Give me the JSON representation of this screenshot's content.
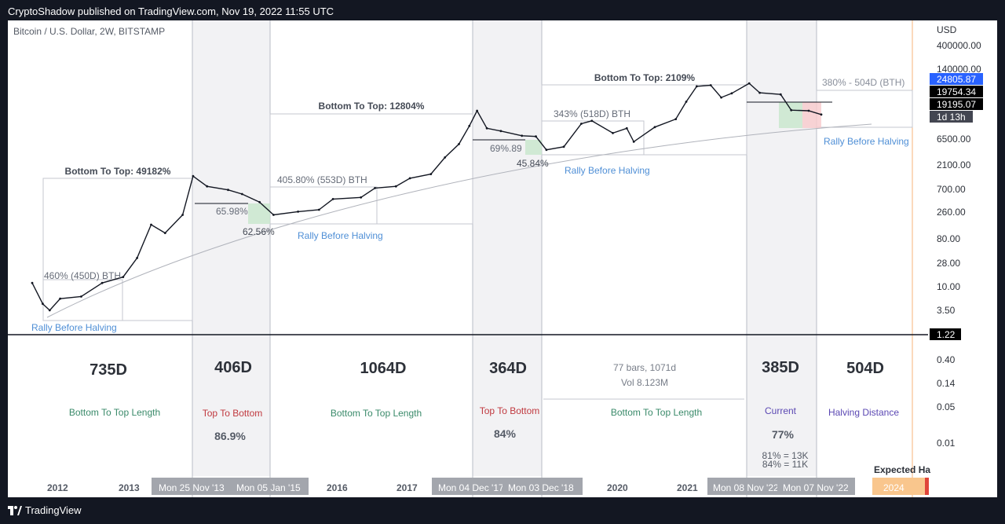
{
  "header": {
    "published_text": "CryptoShadow published on TradingView.com, Nov 19, 2022 11:55 UTC"
  },
  "footer": {
    "brand": "TradingView"
  },
  "chart_data": {
    "type": "line",
    "title": "Bitcoin / U.S. Dollar, 2W, BITSTAMP",
    "currency": "USD",
    "scale": "log",
    "yticks": [
      "400000.00",
      "140000.00",
      "6500.00",
      "2100.00",
      "700.00",
      "260.00",
      "80.00",
      "28.00",
      "10.00",
      "3.50"
    ],
    "yticks_lower": [
      "0.40",
      "0.14",
      "0.05",
      "0.01"
    ],
    "price_labels": [
      {
        "text": "24805.87",
        "bg": "#2962ff"
      },
      {
        "text": "19754.34",
        "bg": "#000000"
      },
      {
        "text": "19195.07",
        "bg": "#000000"
      },
      {
        "text": "1d 13h",
        "bg": "#434651"
      }
    ],
    "divider_label": "1.22",
    "xticks": [
      "2012",
      "2013",
      "2016",
      "2017",
      "2020",
      "2021"
    ],
    "date_labels": [
      "Mon 25 Nov '13",
      "Mon 05 Jan '15",
      "Mon 04 Dec '17",
      "Mon 03 Dec '18",
      "Mon 08 Nov '22",
      "Mon 07 Nov '22"
    ],
    "expected_label": "Expected Ha",
    "expected_date": "2024",
    "price_series": [
      {
        "t": 2011.6,
        "p": 10
      },
      {
        "t": 2011.75,
        "p": 4
      },
      {
        "t": 2011.85,
        "p": 3
      },
      {
        "t": 2012.0,
        "p": 5
      },
      {
        "t": 2012.3,
        "p": 5.5
      },
      {
        "t": 2012.6,
        "p": 10
      },
      {
        "t": 2012.9,
        "p": 13
      },
      {
        "t": 2013.1,
        "p": 30
      },
      {
        "t": 2013.3,
        "p": 130
      },
      {
        "t": 2013.5,
        "p": 90
      },
      {
        "t": 2013.75,
        "p": 200
      },
      {
        "t": 2013.9,
        "p": 1100
      },
      {
        "t": 2014.1,
        "p": 700
      },
      {
        "t": 2014.4,
        "p": 600
      },
      {
        "t": 2014.6,
        "p": 500
      },
      {
        "t": 2014.85,
        "p": 350
      },
      {
        "t": 2015.05,
        "p": 200
      },
      {
        "t": 2015.4,
        "p": 230
      },
      {
        "t": 2015.7,
        "p": 250
      },
      {
        "t": 2015.9,
        "p": 400
      },
      {
        "t": 2016.3,
        "p": 430
      },
      {
        "t": 2016.5,
        "p": 650
      },
      {
        "t": 2016.8,
        "p": 700
      },
      {
        "t": 2017.0,
        "p": 1000
      },
      {
        "t": 2017.3,
        "p": 1200
      },
      {
        "t": 2017.5,
        "p": 2500
      },
      {
        "t": 2017.7,
        "p": 4500
      },
      {
        "t": 2017.85,
        "p": 10000
      },
      {
        "t": 2017.96,
        "p": 19500
      },
      {
        "t": 2018.1,
        "p": 9000
      },
      {
        "t": 2018.3,
        "p": 8000
      },
      {
        "t": 2018.6,
        "p": 6500
      },
      {
        "t": 2018.8,
        "p": 6300
      },
      {
        "t": 2018.95,
        "p": 3500
      },
      {
        "t": 2019.2,
        "p": 4000
      },
      {
        "t": 2019.45,
        "p": 11000
      },
      {
        "t": 2019.6,
        "p": 12500
      },
      {
        "t": 2019.9,
        "p": 7300
      },
      {
        "t": 2020.1,
        "p": 9000
      },
      {
        "t": 2020.2,
        "p": 5000
      },
      {
        "t": 2020.5,
        "p": 9500
      },
      {
        "t": 2020.8,
        "p": 13500
      },
      {
        "t": 2020.95,
        "p": 29000
      },
      {
        "t": 2021.1,
        "p": 57000
      },
      {
        "t": 2021.3,
        "p": 60000
      },
      {
        "t": 2021.45,
        "p": 35000
      },
      {
        "t": 2021.6,
        "p": 42000
      },
      {
        "t": 2021.85,
        "p": 65000
      },
      {
        "t": 2022.0,
        "p": 43000
      },
      {
        "t": 2022.3,
        "p": 40000
      },
      {
        "t": 2022.45,
        "p": 20000
      },
      {
        "t": 2022.7,
        "p": 19500
      },
      {
        "t": 2022.88,
        "p": 16500
      }
    ],
    "cycles": [
      {
        "phase": "Bottom To Top",
        "top_label": "Bottom To Top: 49182%",
        "rally": "460% (450D) BTH",
        "rally_before_halving": "Rally Before Halving",
        "length": "735D",
        "length_label": "Bottom To Top Length"
      },
      {
        "phase": "Top To Bottom",
        "length": "406D",
        "length_label": "Top To Bottom",
        "drawdown": "86.9%",
        "retrace_1": "65.98%",
        "retrace_2": "62.56%"
      },
      {
        "phase": "Bottom To Top",
        "top_label": "Bottom To Top: 12804%",
        "rally": "405.80% (553D) BTH",
        "rally_before_halving": "Rally Before Halving",
        "length": "1064D",
        "length_label": "Bottom To Top Length"
      },
      {
        "phase": "Top To Bottom",
        "length": "364D",
        "length_label": "Top To Bottom",
        "drawdown": "84%",
        "retrace_1": "69%.89",
        "retrace_2": "45.84%"
      },
      {
        "phase": "Bottom To Top",
        "top_label": "Bottom To Top: 2109%",
        "rally": "343% (518D) BTH",
        "rally_before_halving": "Rally Before Halving",
        "bars_info": "77 bars, 1071d",
        "vol_info": "Vol 8.123M",
        "length_label": "Bottom To Top Length"
      },
      {
        "phase": "Current",
        "length": "385D",
        "length_label": "Current",
        "drawdown": "77%",
        "note_1": "81% = 13K",
        "note_2": "84% = 11K"
      },
      {
        "phase": "Halving Distance",
        "length": "504D",
        "length_label": "Halving Distance",
        "projection": "380% - 504D (BTH)",
        "rally_before_halving": "Rally Before Halving"
      }
    ]
  }
}
